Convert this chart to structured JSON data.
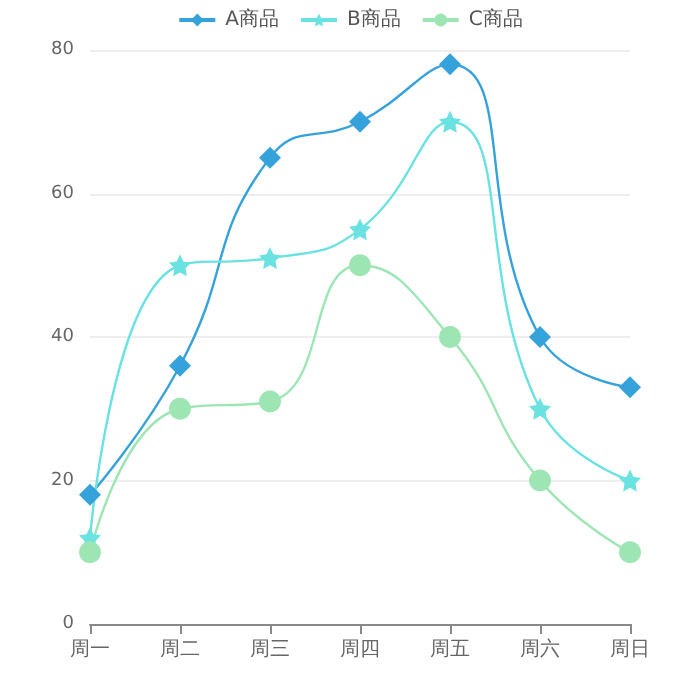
{
  "chart_data": {
    "type": "line",
    "categories": [
      "周一",
      "周二",
      "周三",
      "周四",
      "周五",
      "周六",
      "周日"
    ],
    "series": [
      {
        "name": "A商品",
        "color": "#35a2db",
        "marker": "diamond",
        "values": [
          18,
          36,
          65,
          70,
          78,
          40,
          33
        ]
      },
      {
        "name": "B商品",
        "color": "#6ae2e2",
        "marker": "star",
        "values": [
          12,
          50,
          51,
          55,
          70,
          30,
          20
        ]
      },
      {
        "name": "C商品",
        "color": "#9de6b4",
        "marker": "circle",
        "values": [
          10,
          30,
          31,
          50,
          40,
          20,
          10
        ]
      }
    ],
    "ylim": [
      0,
      80
    ],
    "yticks": [
      0,
      20,
      40,
      60,
      80
    ],
    "grid": "y",
    "legend": "top"
  }
}
